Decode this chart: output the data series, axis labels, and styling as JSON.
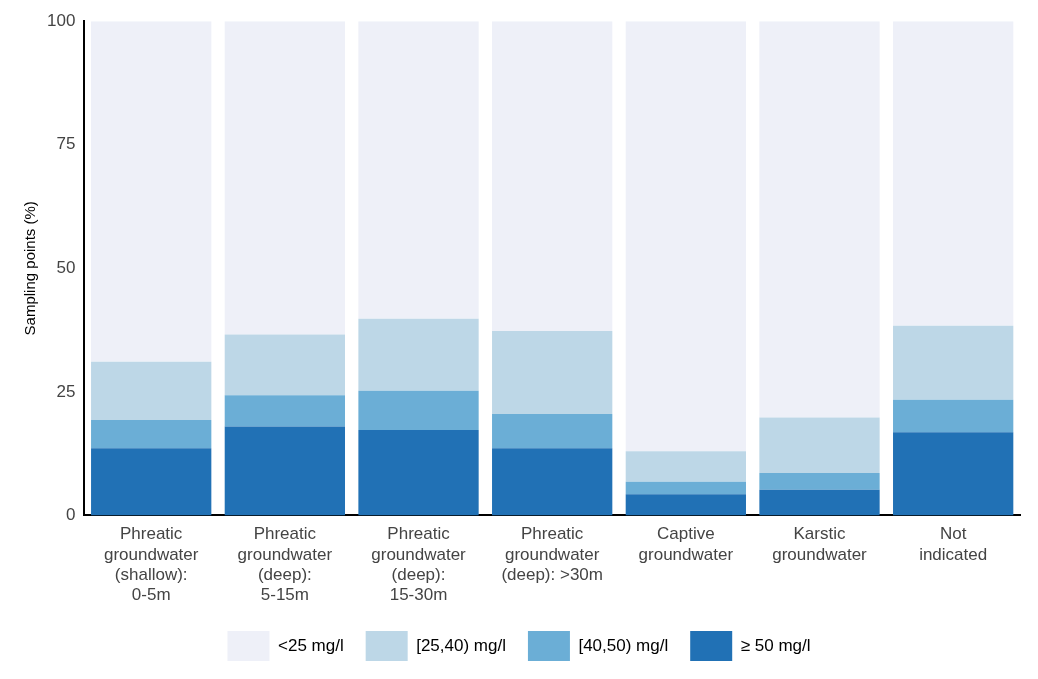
{
  "chart_data": {
    "type": "bar",
    "stacked": true,
    "ylabel": "Sampling points (%)",
    "categories": [
      "Phreatic groundwater (shallow): 0-5m",
      "Phreatic groundwater (deep): 5-15m",
      "Phreatic groundwater (deep): 15-30m",
      "Phreatic groundwater (deep): >30m",
      "Captive groundwater",
      "Karstic groundwater",
      "Not indicated"
    ],
    "series": [
      {
        "name": "≥ 50 mg/l",
        "color": "#2171b5",
        "values": [
          13.6,
          18.0,
          17.3,
          13.6,
          4.3,
          5.2,
          16.8
        ]
      },
      {
        "name": "[40,50) mg/l",
        "color": "#6baed6",
        "values": [
          5.7,
          6.3,
          7.9,
          6.9,
          2.5,
          3.4,
          6.6
        ]
      },
      {
        "name": "[25,40) mg/l",
        "color": "#bdd7e7",
        "values": [
          11.8,
          12.3,
          14.6,
          16.8,
          6.2,
          11.2,
          15.0
        ]
      },
      {
        "name": "<25 mg/l",
        "color": "#eef0f8",
        "values": [
          68.9,
          63.4,
          60.2,
          62.7,
          87.0,
          80.2,
          61.6
        ]
      }
    ],
    "ylim": [
      0,
      100
    ],
    "yticks": [
      0,
      25,
      50,
      75,
      100
    ],
    "grid": false,
    "legend": "bottom"
  }
}
